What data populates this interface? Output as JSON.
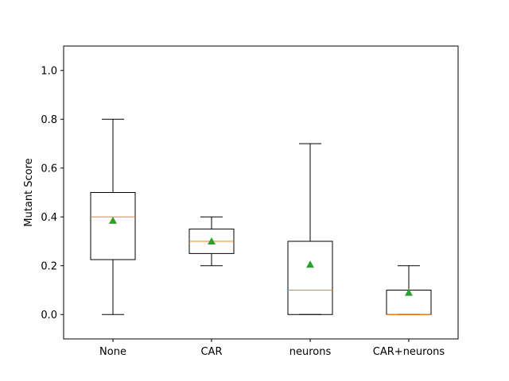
{
  "chart_data": {
    "type": "box",
    "title": "",
    "xlabel": "",
    "ylabel": "Mutant Score",
    "ylim": [
      -0.1,
      1.1
    ],
    "yticks": [
      0.0,
      0.2,
      0.4,
      0.6,
      0.8,
      1.0
    ],
    "ytick_labels": [
      "0.0",
      "0.2",
      "0.4",
      "0.6",
      "0.8",
      "1.0"
    ],
    "categories": [
      "None",
      "CAR",
      "neurons",
      "CAR+neurons"
    ],
    "boxes": [
      {
        "label": "None",
        "whisker_low": 0.0,
        "q1": 0.225,
        "median": 0.4,
        "q3": 0.5,
        "whisker_high": 0.8,
        "mean": 0.385
      },
      {
        "label": "CAR",
        "whisker_low": 0.2,
        "q1": 0.25,
        "median": 0.3,
        "q3": 0.35,
        "whisker_high": 0.4,
        "mean": 0.3
      },
      {
        "label": "neurons",
        "whisker_low": 0.0,
        "q1": 0.0,
        "median": 0.1,
        "q3": 0.3,
        "whisker_high": 0.7,
        "mean": 0.205
      },
      {
        "label": "CAR+neurons",
        "whisker_low": 0.0,
        "q1": 0.0,
        "median": 0.0,
        "q3": 0.1,
        "whisker_high": 0.2,
        "mean": 0.09
      }
    ],
    "grid": false,
    "colors": {
      "box": "#000000",
      "median": "#ff7f0e",
      "mean": "#2ca02c",
      "background": "#ffffff"
    }
  }
}
